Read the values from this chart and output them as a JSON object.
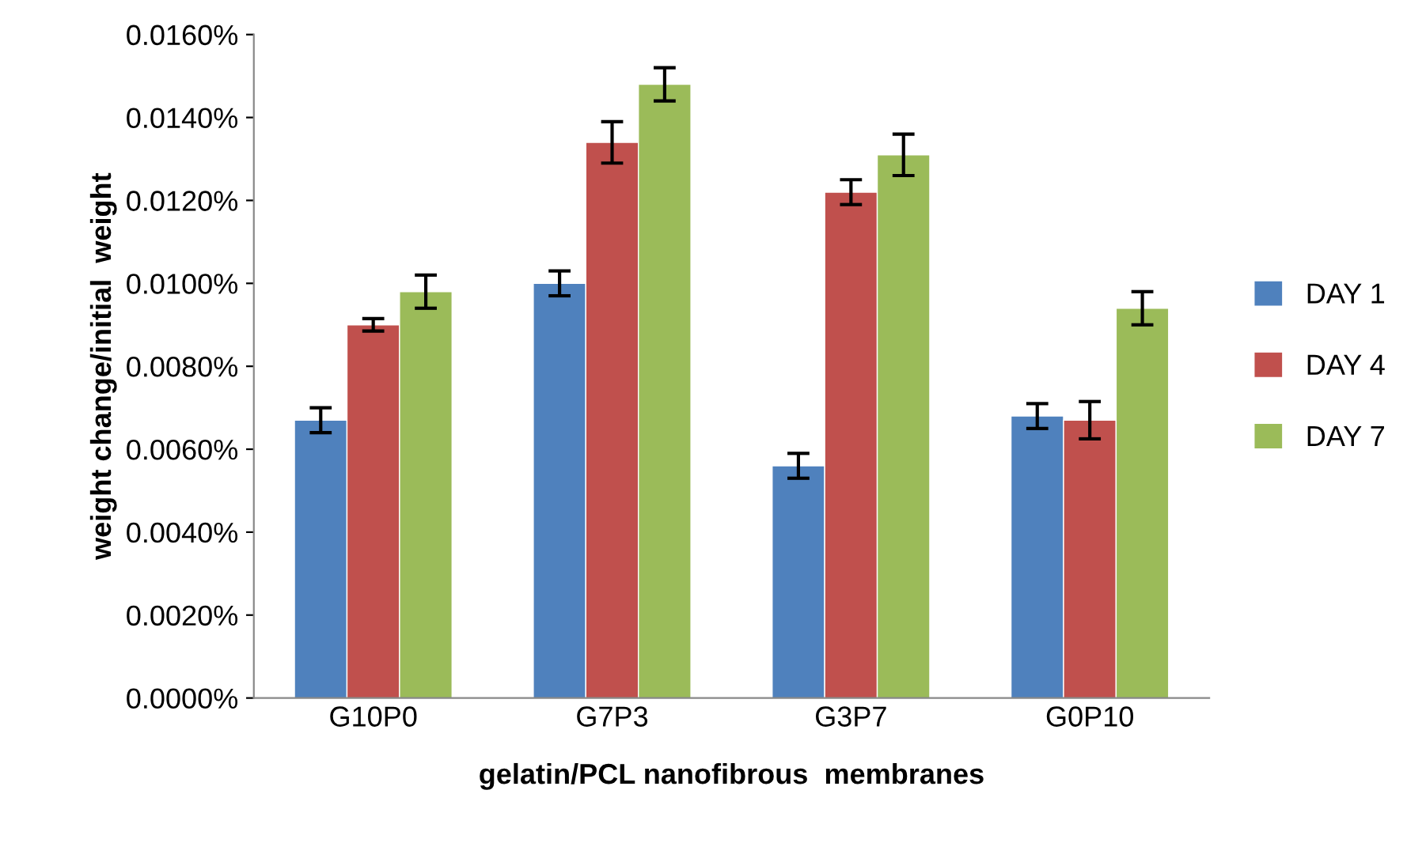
{
  "chart_data": {
    "type": "bar",
    "xlabel": "gelatin/PCL nanofibrous  membranes",
    "ylabel": "weight change/initial  weight",
    "categories": [
      "G10P0",
      "G7P3",
      "G3P7",
      "G0P10"
    ],
    "series": [
      {
        "name": "DAY 1",
        "color": "#4f81bd",
        "values": [
          0.0067,
          0.01,
          0.0056,
          0.0068
        ],
        "errors": [
          0.0003,
          0.0003,
          0.0003,
          0.0003
        ]
      },
      {
        "name": "DAY 4",
        "color": "#c0504d",
        "values": [
          0.009,
          0.0134,
          0.0122,
          0.0067
        ],
        "errors": [
          0.00015,
          0.0005,
          0.0003,
          0.00045
        ]
      },
      {
        "name": "DAY 7",
        "color": "#9bbb59",
        "values": [
          0.0098,
          0.0148,
          0.0131,
          0.0094
        ],
        "errors": [
          0.0004,
          0.0004,
          0.0005,
          0.0004
        ]
      }
    ],
    "ylim": [
      0,
      0.016
    ],
    "yticks": [
      {
        "value": 0,
        "label": "0.0000%"
      },
      {
        "value": 0.002,
        "label": "0.0020%"
      },
      {
        "value": 0.004,
        "label": "0.0040%"
      },
      {
        "value": 0.006,
        "label": "0.0060%"
      },
      {
        "value": 0.008,
        "label": "0.0080%"
      },
      {
        "value": 0.01,
        "label": "0.0100%"
      },
      {
        "value": 0.012,
        "label": "0.0120%"
      },
      {
        "value": 0.014,
        "label": "0.0140%"
      },
      {
        "value": 0.016,
        "label": "0.0160%"
      }
    ],
    "grid": false,
    "legend": "right"
  }
}
